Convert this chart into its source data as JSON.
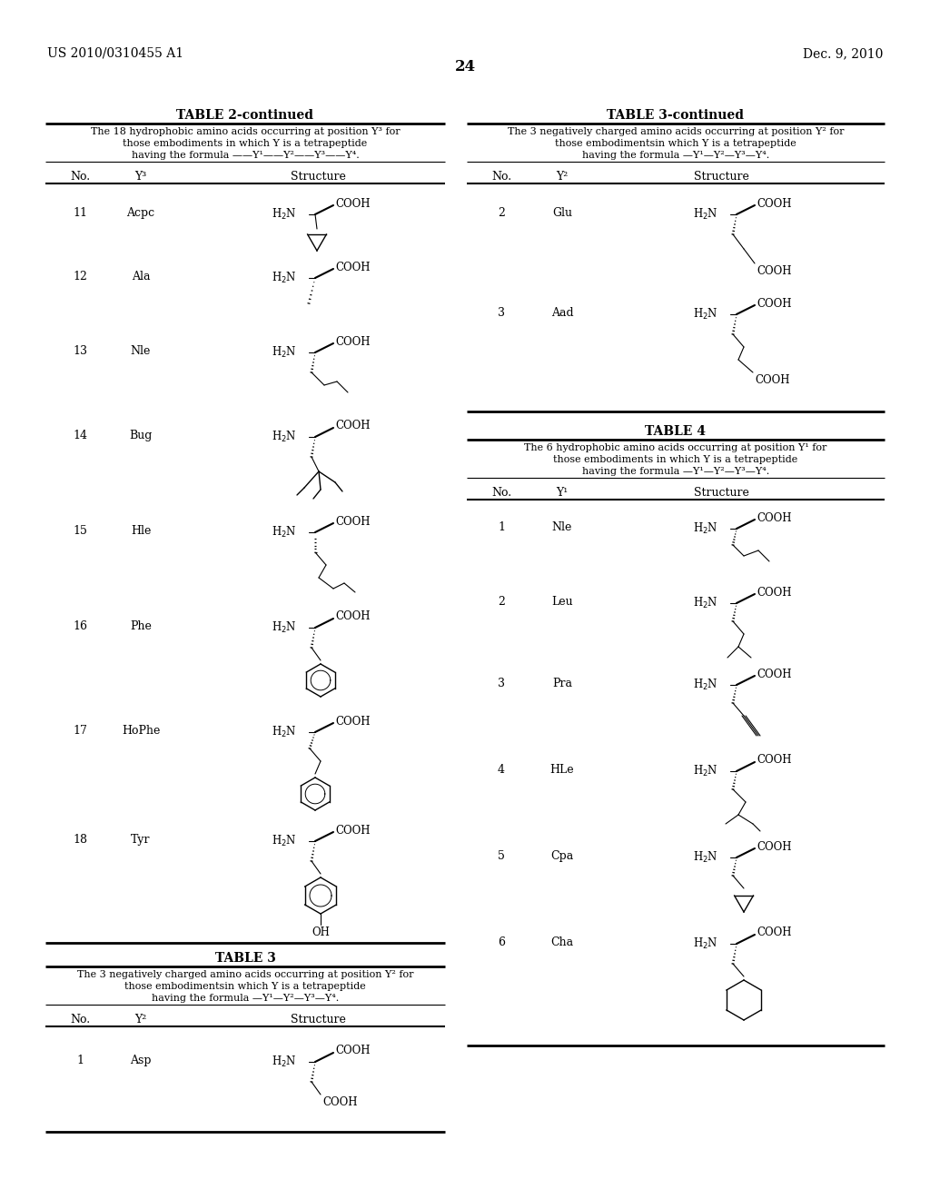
{
  "bg_color": "#ffffff",
  "header_left": "US 2010/0310455 A1",
  "header_right": "Dec. 9, 2010",
  "page_number": "24",
  "left_table_title": "TABLE 2-continued",
  "left_table_desc1": "The 18 hydrophobic amino acids occurring at position Y³ for",
  "left_table_desc2": "those embodiments in which Y is a tetrapeptide",
  "left_table_desc3": "having the formula ——Y¹——Y²——Y³——Y⁴.",
  "right_table1_title": "TABLE 3-continued",
  "right_table1_desc1": "The 3 negatively charged amino acids occurring at position Y² for",
  "right_table1_desc2": "those embodimentsin which Y is a tetrapeptide",
  "right_table1_desc3": "having the formula —Y¹—Y²—Y³—Y⁴.",
  "right_table2_title": "TABLE 4",
  "right_table2_desc1": "The 6 hydrophobic amino acids occurring at position Y¹ for",
  "right_table2_desc2": "those embodiments in which Y is a tetrapeptide",
  "right_table2_desc3": "having the formula —Y¹—Y²—Y³—Y⁴.",
  "bottom_table_title": "TABLE 3",
  "bottom_table_desc1": "The 3 negatively charged amino acids occurring at position Y² for",
  "bottom_table_desc2": "those embodimentsin which Y is a tetrapeptide",
  "bottom_table_desc3": "having the formula —Y¹—Y²—Y³—Y⁴."
}
